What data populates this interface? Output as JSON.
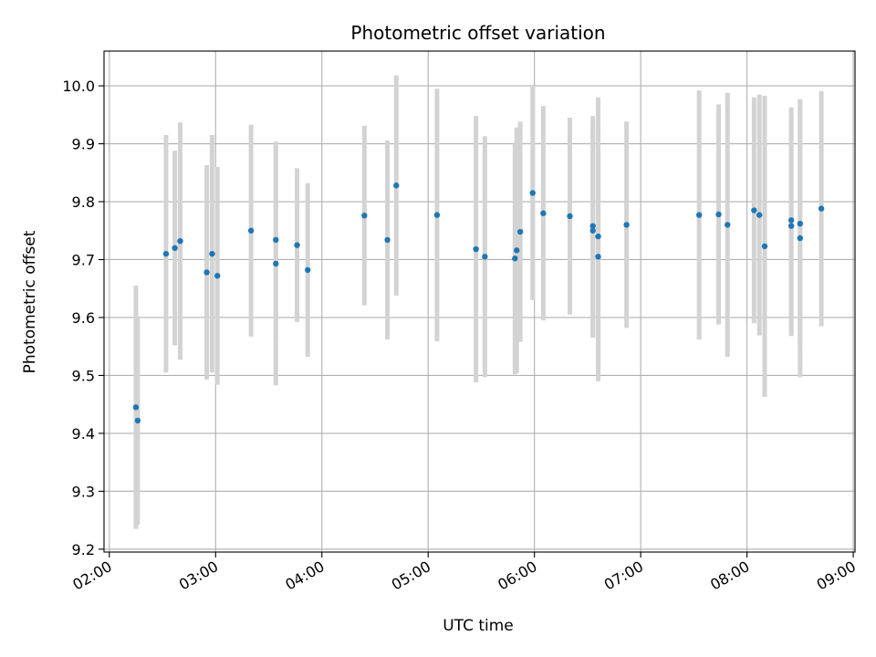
{
  "chart_data": {
    "type": "scatter",
    "title": "Photometric offset variation",
    "xlabel": "UTC time",
    "ylabel": "Photometric offset",
    "x_ticks": [
      "02:00",
      "03:00",
      "04:00",
      "05:00",
      "06:00",
      "07:00",
      "08:00",
      "09:00"
    ],
    "y_ticks": [
      "9.2",
      "9.3",
      "9.4",
      "9.5",
      "9.6",
      "9.7",
      "9.8",
      "9.9",
      "10.0"
    ],
    "xlim": [
      "01:57",
      "09:01"
    ],
    "ylim": [
      9.195,
      10.06
    ],
    "grid": true,
    "colors": {
      "point": "#1f77b4",
      "errorbar": "#d3d3d3",
      "grid": "#b0b0b0"
    },
    "points": [
      {
        "x": "02:15",
        "y": 9.445,
        "err": 0.21
      },
      {
        "x": "02:16",
        "y": 9.422,
        "err": 0.18
      },
      {
        "x": "02:32",
        "y": 9.71,
        "err": 0.205
      },
      {
        "x": "02:37",
        "y": 9.72,
        "err": 0.168
      },
      {
        "x": "02:40",
        "y": 9.732,
        "err": 0.205
      },
      {
        "x": "02:55",
        "y": 9.678,
        "err": 0.185
      },
      {
        "x": "02:58",
        "y": 9.71,
        "err": 0.205
      },
      {
        "x": "03:01",
        "y": 9.672,
        "err": 0.188
      },
      {
        "x": "03:20",
        "y": 9.75,
        "err": 0.183
      },
      {
        "x": "03:34",
        "y": 9.734,
        "err": 0.17
      },
      {
        "x": "03:34",
        "y": 9.693,
        "err": 0.21
      },
      {
        "x": "03:46",
        "y": 9.725,
        "err": 0.133
      },
      {
        "x": "03:52",
        "y": 9.682,
        "err": 0.15
      },
      {
        "x": "04:24",
        "y": 9.776,
        "err": 0.155
      },
      {
        "x": "04:37",
        "y": 9.734,
        "err": 0.172
      },
      {
        "x": "04:42",
        "y": 9.828,
        "err": 0.19
      },
      {
        "x": "05:05",
        "y": 9.777,
        "err": 0.218
      },
      {
        "x": "05:27",
        "y": 9.718,
        "err": 0.23
      },
      {
        "x": "05:32",
        "y": 9.705,
        "err": 0.208
      },
      {
        "x": "05:49",
        "y": 9.702,
        "err": 0.2
      },
      {
        "x": "05:50",
        "y": 9.716,
        "err": 0.212
      },
      {
        "x": "05:52",
        "y": 9.748,
        "err": 0.19
      },
      {
        "x": "05:59",
        "y": 9.815,
        "err": 0.185
      },
      {
        "x": "06:05",
        "y": 9.78,
        "err": 0.185
      },
      {
        "x": "06:20",
        "y": 9.775,
        "err": 0.17
      },
      {
        "x": "06:33",
        "y": 9.758,
        "err": 0.19
      },
      {
        "x": "06:33",
        "y": 9.75,
        "err": 0.185
      },
      {
        "x": "06:36",
        "y": 9.74,
        "err": 0.24
      },
      {
        "x": "06:36",
        "y": 9.705,
        "err": 0.215
      },
      {
        "x": "06:52",
        "y": 9.76,
        "err": 0.178
      },
      {
        "x": "07:33",
        "y": 9.777,
        "err": 0.215
      },
      {
        "x": "07:44",
        "y": 9.778,
        "err": 0.19
      },
      {
        "x": "07:49",
        "y": 9.76,
        "err": 0.228
      },
      {
        "x": "08:04",
        "y": 9.785,
        "err": 0.195
      },
      {
        "x": "08:07",
        "y": 9.777,
        "err": 0.208
      },
      {
        "x": "08:10",
        "y": 9.723,
        "err": 0.26
      },
      {
        "x": "08:25",
        "y": 9.768,
        "err": 0.195
      },
      {
        "x": "08:25",
        "y": 9.758,
        "err": 0.19
      },
      {
        "x": "08:30",
        "y": 9.762,
        "err": 0.21
      },
      {
        "x": "08:30",
        "y": 9.737,
        "err": 0.24
      },
      {
        "x": "08:42",
        "y": 9.788,
        "err": 0.203
      }
    ]
  }
}
